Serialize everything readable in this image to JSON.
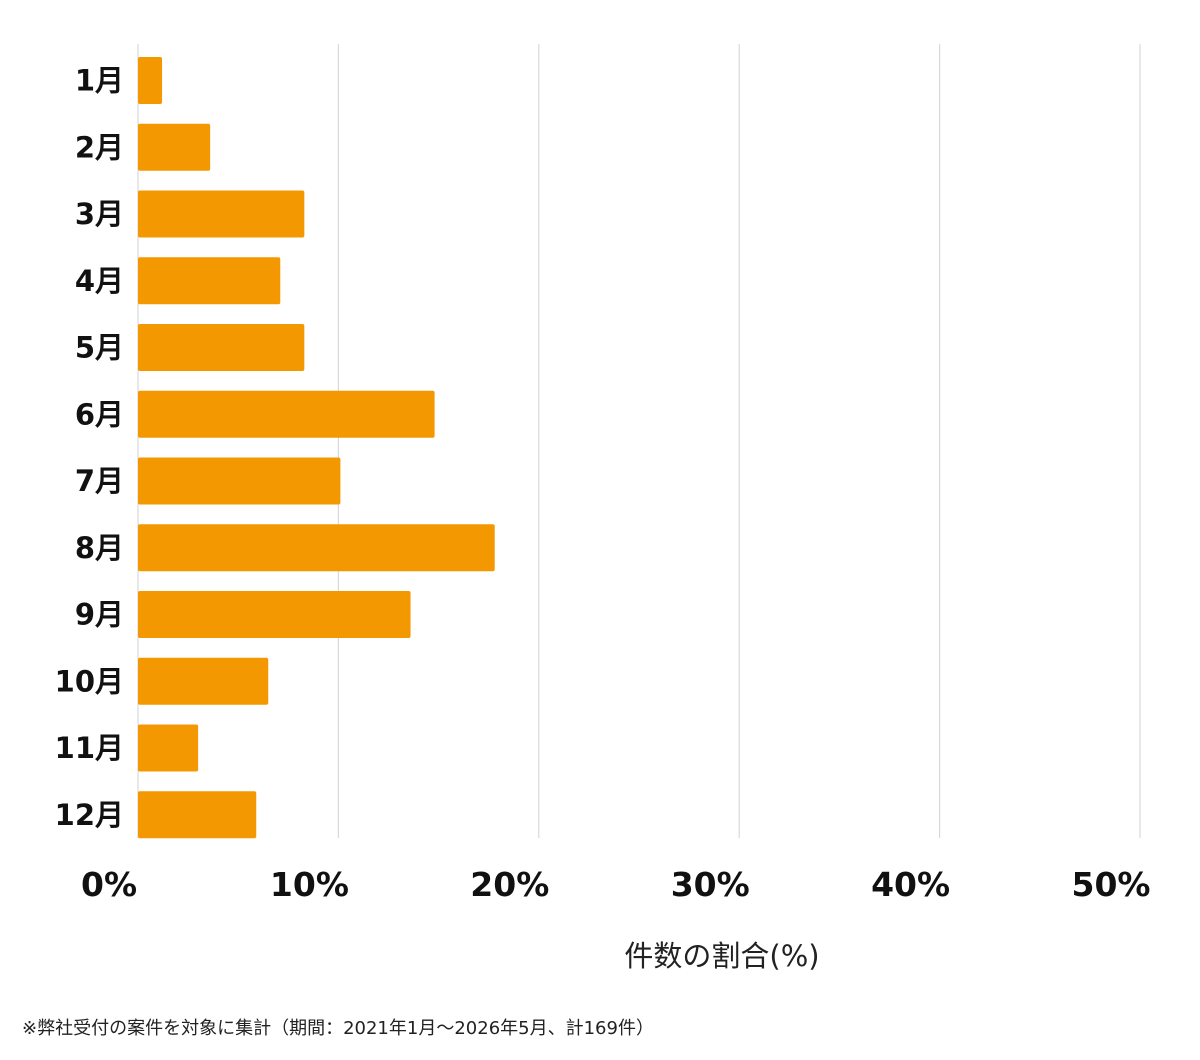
{
  "chart_data": {
    "type": "bar",
    "orientation": "horizontal",
    "categories": [
      "1月",
      "2月",
      "3月",
      "4月",
      "5月",
      "6月",
      "7月",
      "8月",
      "9月",
      "10月",
      "11月",
      "12月"
    ],
    "values": [
      1.2,
      3.6,
      8.3,
      7.1,
      8.3,
      14.8,
      10.1,
      17.8,
      13.6,
      6.5,
      3.0,
      5.9
    ],
    "xlim": [
      0,
      50
    ],
    "xticks": [
      0,
      10,
      20,
      30,
      40,
      50
    ],
    "xtick_labels": [
      "0%",
      "10%",
      "20%",
      "30%",
      "40%",
      "50%"
    ],
    "xlabel": "件数の割合(%)",
    "ylabel": "",
    "title": "",
    "grid": "vertical",
    "legend": "none",
    "bar_color": "#F39800",
    "grid_color": "#D9D9D9"
  },
  "footnote": "※弊社受付の案件を対象に集計（期間：2021年1月～2026年5月、計169件）"
}
